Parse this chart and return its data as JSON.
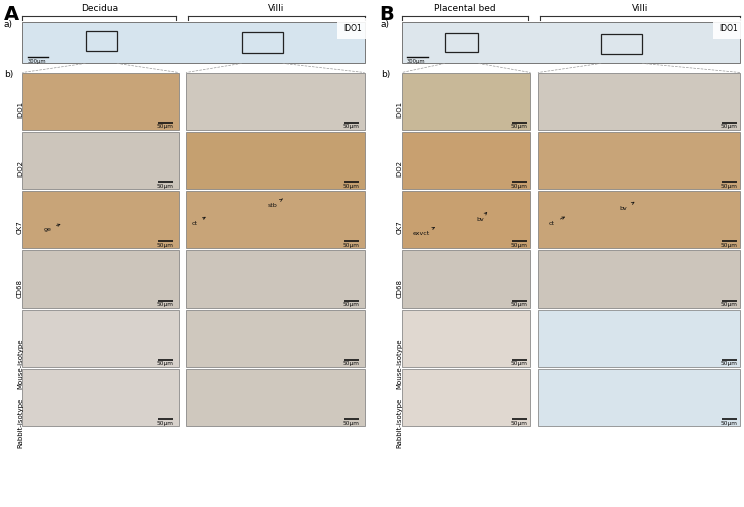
{
  "fig_width": 7.44,
  "fig_height": 5.07,
  "dpi": 100,
  "bg_color": "#ffffff",
  "panel_A": {
    "row_labels": [
      "IDO1",
      "IDO2",
      "CK7",
      "CD68",
      "Mouse-isotype",
      "Rabbit-isotype"
    ]
  },
  "panel_B": {
    "row_labels": [
      "IDO1",
      "IDO2",
      "CK7",
      "CD68",
      "Mouse-isotype",
      "Rabbit-isotype"
    ]
  },
  "colors": {
    "overview_bg_A": "#d6e4ee",
    "overview_bg_B": "#dde6ec",
    "ido1_dec_left": "#c8a478",
    "ido1_dec_right": "#cfc8be",
    "ido2_dec_left": "#ccc5bb",
    "ido2_dec_right": "#c5a070",
    "ck7_dec_left": "#c8a478",
    "ck7_dec_right": "#c8a478",
    "cd68_dec_left": "#ccc5bb",
    "cd68_dec_right": "#ccc5bb",
    "mouse_dec_left": "#d8d2cc",
    "mouse_dec_right": "#cfc8be",
    "rabbit_dec_left": "#d8d2cc",
    "rabbit_dec_right": "#cfc8be",
    "ido1_pb_left": "#c8b898",
    "ido1_pb_right": "#cfc8be",
    "ido2_pb_left": "#c8a070",
    "ido2_pb_right": "#c8a478",
    "ck7_pb_left": "#c8a070",
    "ck7_pb_right": "#c8a478",
    "cd68_pb_left": "#ccc5bb",
    "cd68_pb_right": "#ccc5bb",
    "mouse_pb_left": "#e0d8d0",
    "mouse_pb_right": "#d8e4ec",
    "rabbit_pb_left": "#e0d8d0",
    "rabbit_pb_right": "#d8e4ec",
    "edge": "#888888",
    "text": "#111111",
    "scale": "#111111",
    "bracket": "#333333"
  }
}
